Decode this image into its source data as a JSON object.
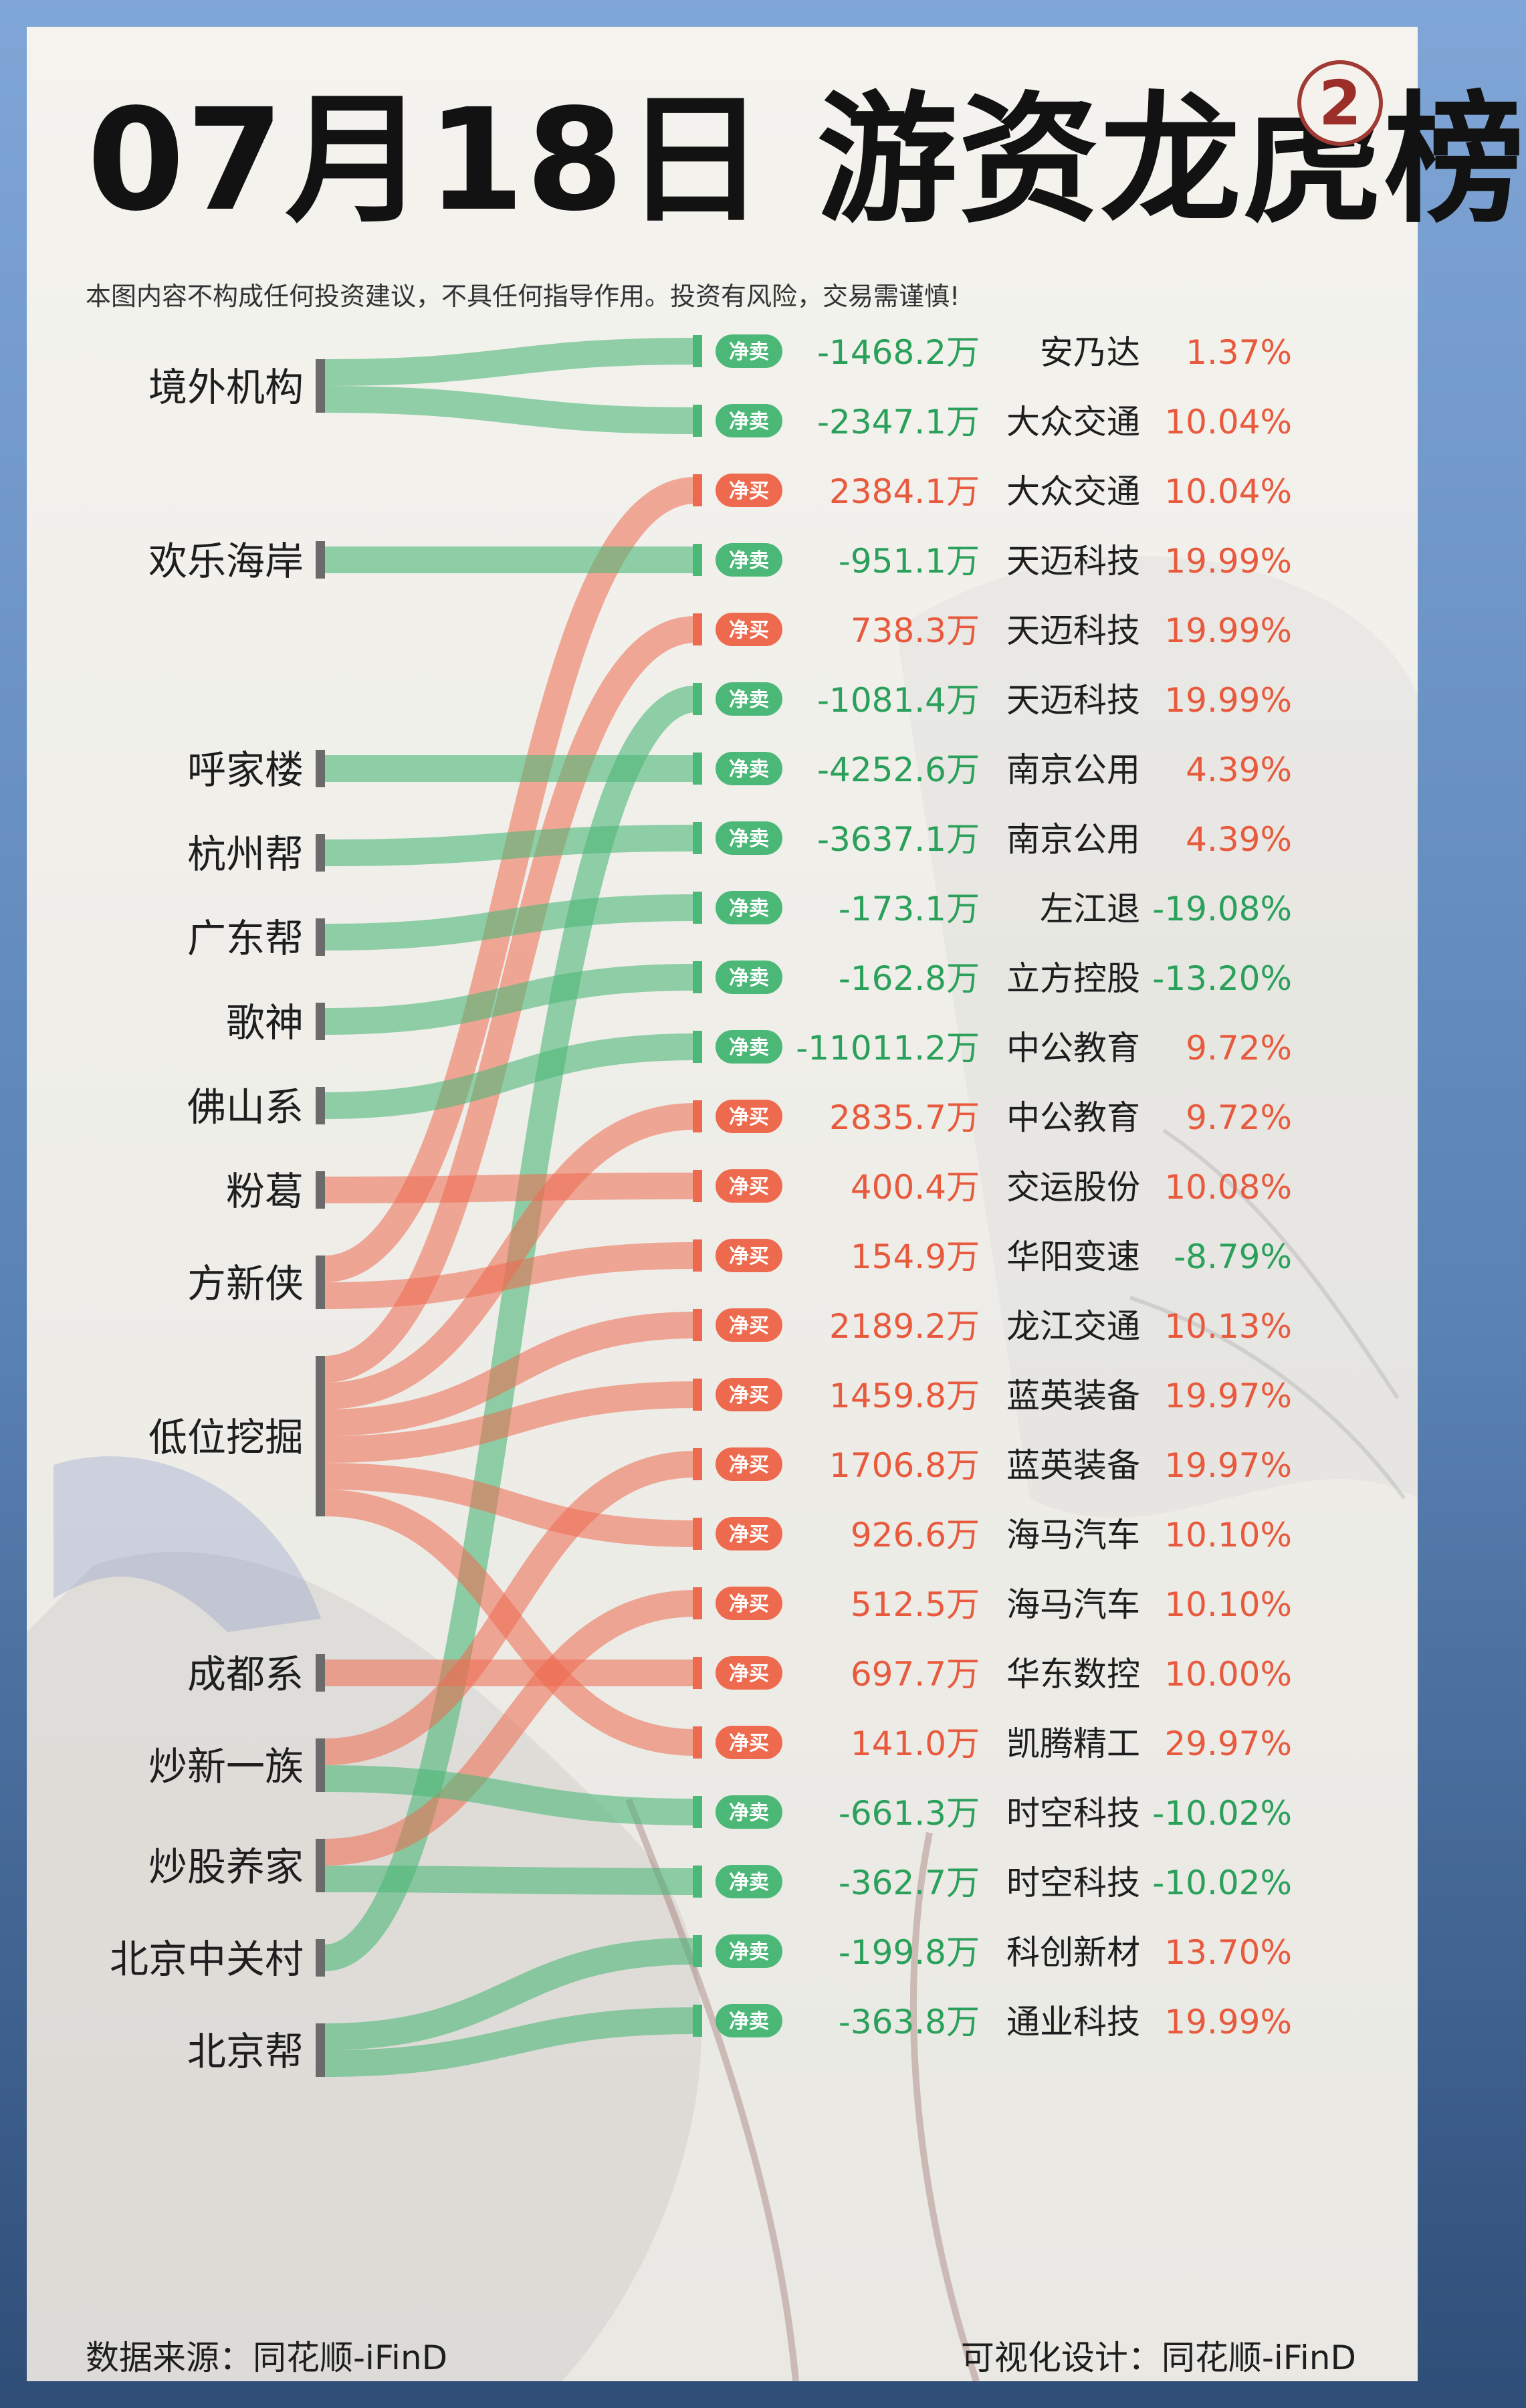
{
  "header": {
    "title": "07月18日 游资龙虎榜",
    "badge": "2",
    "disclaimer": "本图内容不构成任何投资建议，不具任何指导作用。投资有风险，交易需谨慎!"
  },
  "footer": {
    "source": "数据来源：同花顺-iFinD",
    "design": "可视化设计：同花顺-iFinD"
  },
  "colors": {
    "buy": "#ee6a4e",
    "sell": "#4cb878",
    "buy_text": "#e85a3d",
    "sell_text": "#2aa05a",
    "neutral_text": "#1e1e1e"
  },
  "chart_data": {
    "type": "sankey",
    "labels": {
      "buy": "净买",
      "sell": "净卖"
    },
    "groups": [
      "境外机构",
      "欢乐海岸",
      "呼家楼",
      "杭州帮",
      "广东帮",
      "歌神",
      "佛山系",
      "粉葛",
      "方新侠",
      "低位挖掘",
      "成都系",
      "炒新一族",
      "炒股养家",
      "北京中关村",
      "北京帮"
    ],
    "flows": [
      {
        "group": "境外机构",
        "type": "卖",
        "amount": "-1468.2万",
        "stock": "安乃达",
        "change": "1.37%"
      },
      {
        "group": "境外机构",
        "type": "卖",
        "amount": "-2347.1万",
        "stock": "大众交通",
        "change": "10.04%"
      },
      {
        "group": "方新侠",
        "type": "买",
        "amount": "2384.1万",
        "stock": "大众交通",
        "change": "10.04%"
      },
      {
        "group": "欢乐海岸",
        "type": "卖",
        "amount": "-951.1万",
        "stock": "天迈科技",
        "change": "19.99%"
      },
      {
        "group": "低位挖掘",
        "type": "买",
        "amount": "738.3万",
        "stock": "天迈科技",
        "change": "19.99%"
      },
      {
        "group": "北京中关村",
        "type": "卖",
        "amount": "-1081.4万",
        "stock": "天迈科技",
        "change": "19.99%"
      },
      {
        "group": "呼家楼",
        "type": "卖",
        "amount": "-4252.6万",
        "stock": "南京公用",
        "change": "4.39%"
      },
      {
        "group": "杭州帮",
        "type": "卖",
        "amount": "-3637.1万",
        "stock": "南京公用",
        "change": "4.39%"
      },
      {
        "group": "广东帮",
        "type": "卖",
        "amount": "-173.1万",
        "stock": "左江退",
        "change": "-19.08%"
      },
      {
        "group": "歌神",
        "type": "卖",
        "amount": "-162.8万",
        "stock": "立方控股",
        "change": "-13.20%"
      },
      {
        "group": "佛山系",
        "type": "卖",
        "amount": "-11011.2万",
        "stock": "中公教育",
        "change": "9.72%"
      },
      {
        "group": "低位挖掘",
        "type": "买",
        "amount": "2835.7万",
        "stock": "中公教育",
        "change": "9.72%"
      },
      {
        "group": "粉葛",
        "type": "买",
        "amount": "400.4万",
        "stock": "交运股份",
        "change": "10.08%"
      },
      {
        "group": "方新侠",
        "type": "买",
        "amount": "154.9万",
        "stock": "华阳变速",
        "change": "-8.79%"
      },
      {
        "group": "低位挖掘",
        "type": "买",
        "amount": "2189.2万",
        "stock": "龙江交通",
        "change": "10.13%"
      },
      {
        "group": "低位挖掘",
        "type": "买",
        "amount": "1459.8万",
        "stock": "蓝英装备",
        "change": "19.97%"
      },
      {
        "group": "炒新一族",
        "type": "买",
        "amount": "1706.8万",
        "stock": "蓝英装备",
        "change": "19.97%"
      },
      {
        "group": "低位挖掘",
        "type": "买",
        "amount": "926.6万",
        "stock": "海马汽车",
        "change": "10.10%"
      },
      {
        "group": "炒股养家",
        "type": "买",
        "amount": "512.5万",
        "stock": "海马汽车",
        "change": "10.10%"
      },
      {
        "group": "成都系",
        "type": "买",
        "amount": "697.7万",
        "stock": "华东数控",
        "change": "10.00%"
      },
      {
        "group": "低位挖掘",
        "type": "买",
        "amount": "141.0万",
        "stock": "凯腾精工",
        "change": "29.97%"
      },
      {
        "group": "炒新一族",
        "type": "卖",
        "amount": "-661.3万",
        "stock": "时空科技",
        "change": "-10.02%"
      },
      {
        "group": "炒股养家",
        "type": "卖",
        "amount": "-362.7万",
        "stock": "时空科技",
        "change": "-10.02%"
      },
      {
        "group": "北京帮",
        "type": "卖",
        "amount": "-199.8万",
        "stock": "科创新材",
        "change": "13.70%"
      },
      {
        "group": "北京帮",
        "type": "卖",
        "amount": "-363.8万",
        "stock": "通业科技",
        "change": "19.99%"
      }
    ]
  }
}
